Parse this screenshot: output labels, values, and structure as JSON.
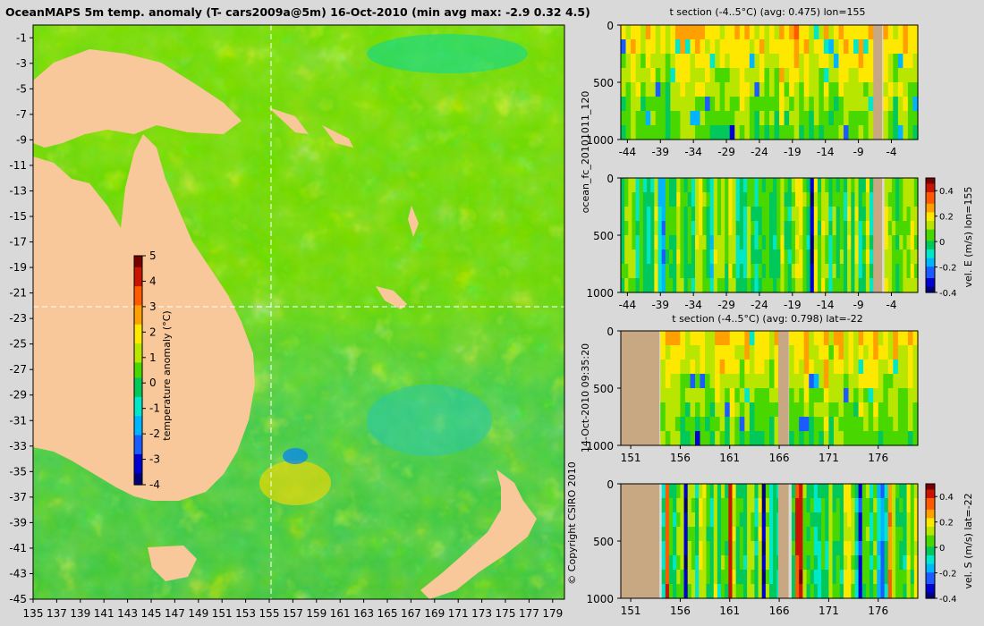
{
  "figure": {
    "title": "OceanMAPS 5m temp. anomaly (T- cars2009a@5m) 16-Oct-2010 (min avg max: -2.9 0.32 4.5)",
    "side_label_1": "ocean_fc_20101011_120",
    "side_label_2": "14-Oct-2010 09:35:20",
    "side_label_3": "© Copyright CSIRO 2010"
  },
  "colors": {
    "land": "#f9c89a",
    "section_land": "#c8a882",
    "frame_bg": "#d9d9d9",
    "guide_line": "#ffffff",
    "colormap": [
      "#00007a",
      "#0000d0",
      "#1a5cff",
      "#00b4ff",
      "#00e8c8",
      "#00c85a",
      "#48d800",
      "#b8e600",
      "#ffe800",
      "#ffa000",
      "#ff5a00",
      "#c81400",
      "#780000"
    ]
  },
  "chart_data": [
    {
      "type": "heatmap",
      "name": "map",
      "xlim": [
        135,
        180
      ],
      "ylim": [
        -45,
        0
      ],
      "xticks": [
        "135",
        "137",
        "139",
        "141",
        "143",
        "145",
        "147",
        "149",
        "151",
        "153",
        "155",
        "157",
        "159",
        "161",
        "163",
        "165",
        "167",
        "169",
        "171",
        "173",
        "175",
        "177",
        "179"
      ],
      "yticks": [
        "-1",
        "-3",
        "-5",
        "-7",
        "-9",
        "-11",
        "-13",
        "-15",
        "-17",
        "-19",
        "-21",
        "-23",
        "-25",
        "-27",
        "-29",
        "-31",
        "-33",
        "-35",
        "-37",
        "-39",
        "-41",
        "-43",
        "-45"
      ],
      "section_lon": 155,
      "section_lat": -22,
      "colorbar": {
        "label": "temperature anomaly (°C)",
        "ticks": [
          "5",
          "4",
          "3",
          "2",
          "1",
          "0",
          "-1",
          "-2",
          "-3",
          "-4"
        ],
        "range": [
          -4,
          5
        ]
      }
    },
    {
      "type": "heatmap",
      "name": "t-section-lon",
      "title": "t section (-4..5°C) (avg: 0.475) lon=155",
      "xlim": [
        -45,
        0
      ],
      "ylim": [
        0,
        1000
      ],
      "xticks": [
        "-44",
        "-39",
        "-34",
        "-29",
        "-24",
        "-19",
        "-14",
        "-9",
        "-4"
      ],
      "yticks": [
        "0",
        "500",
        "1000"
      ]
    },
    {
      "type": "heatmap",
      "name": "u-section-lon",
      "xlim": [
        -45,
        0
      ],
      "ylim": [
        0,
        1000
      ],
      "xticks": [
        "-44",
        "-39",
        "-34",
        "-29",
        "-24",
        "-19",
        "-14",
        "-9",
        "-4"
      ],
      "yticks": [
        "0",
        "500",
        "1000"
      ],
      "colorbar": {
        "label": "vel. E (m/s) lon=155",
        "ticks": [
          "0.4",
          "0.2",
          "0",
          "-0.2",
          "-0.4"
        ],
        "range": [
          -0.4,
          0.5
        ]
      }
    },
    {
      "type": "heatmap",
      "name": "t-section-lat",
      "title": "t section (-4..5°C) (avg: 0.798) lat=-22",
      "xlim": [
        150,
        180
      ],
      "ylim": [
        0,
        1000
      ],
      "xticks": [
        "151",
        "156",
        "161",
        "166",
        "171",
        "176"
      ],
      "yticks": [
        "0",
        "500",
        "1000"
      ]
    },
    {
      "type": "heatmap",
      "name": "v-section-lat",
      "xlim": [
        150,
        180
      ],
      "ylim": [
        0,
        1000
      ],
      "xticks": [
        "151",
        "156",
        "161",
        "166",
        "171",
        "176"
      ],
      "yticks": [
        "0",
        "500",
        "1000"
      ],
      "colorbar": {
        "label": "vel. S (m/s) lat=-22",
        "ticks": [
          "0.4",
          "0.2",
          "0",
          "-0.2",
          "-0.4"
        ],
        "range": [
          -0.4,
          0.5
        ]
      }
    }
  ]
}
